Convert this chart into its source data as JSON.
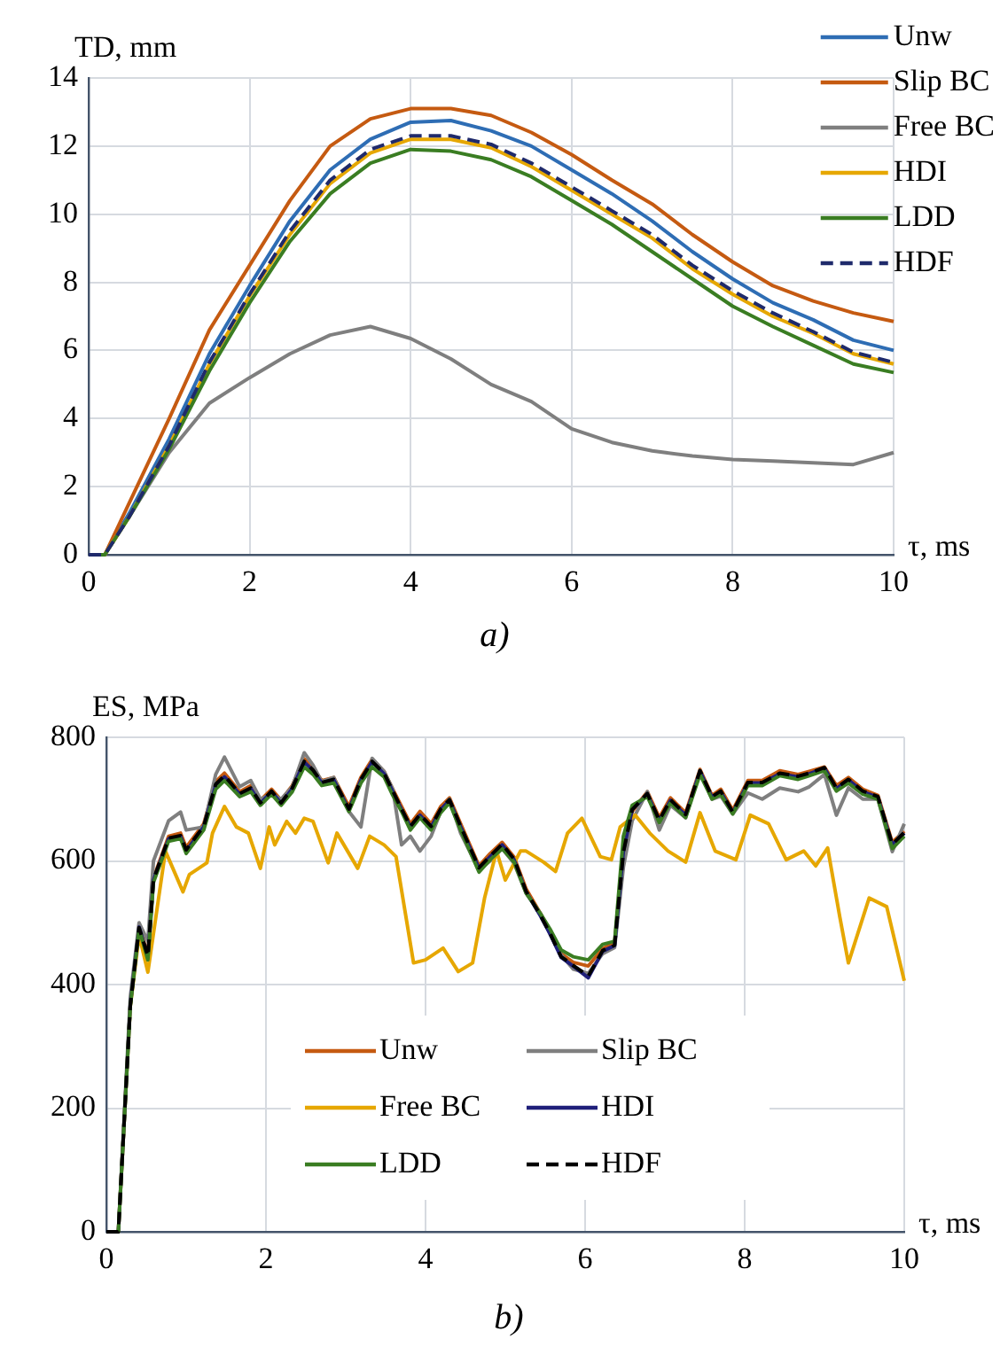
{
  "chart_data": [
    {
      "type": "line",
      "ylabel": "TD, mm",
      "xlabel": "τ, ms",
      "annotations": [
        "a)"
      ],
      "x": [
        0,
        0.2,
        0.5,
        1,
        1.5,
        2,
        2.5,
        3,
        3.5,
        4,
        4.5,
        5,
        5.5,
        6,
        6.5,
        7,
        7.5,
        8,
        8.5,
        9,
        9.5,
        10
      ],
      "series": [
        {
          "name": "Unw",
          "color": "#2e6db4",
          "values": [
            0,
            0,
            1.2,
            3.4,
            5.9,
            7.9,
            9.8,
            11.3,
            12.2,
            12.7,
            12.75,
            12.45,
            12.0,
            11.3,
            10.6,
            9.8,
            8.9,
            8.1,
            7.4,
            6.9,
            6.3,
            6.0
          ]
        },
        {
          "name": "Slip BC",
          "color": "#c55a11",
          "values": [
            0,
            0,
            1.5,
            4.0,
            6.6,
            8.5,
            10.4,
            12.0,
            12.8,
            13.1,
            13.1,
            12.9,
            12.4,
            11.75,
            11.0,
            10.3,
            9.4,
            8.6,
            7.9,
            7.45,
            7.1,
            6.85
          ]
        },
        {
          "name": "Free BC",
          "color": "#7f7f7f",
          "values": [
            0,
            0,
            1.1,
            3.0,
            4.45,
            5.2,
            5.9,
            6.45,
            6.7,
            6.35,
            5.75,
            5.0,
            4.5,
            3.7,
            3.3,
            3.05,
            2.9,
            2.8,
            2.75,
            2.7,
            2.65,
            3.0
          ]
        },
        {
          "name": "HDI",
          "color": "#e6a700",
          "values": [
            0,
            0,
            1.1,
            3.2,
            5.6,
            7.6,
            9.4,
            10.9,
            11.8,
            12.2,
            12.2,
            11.95,
            11.4,
            10.7,
            10.0,
            9.3,
            8.4,
            7.65,
            7.0,
            6.5,
            5.9,
            5.6
          ]
        },
        {
          "name": "LDD",
          "color": "#3a7d22",
          "values": [
            0,
            0,
            1.1,
            3.1,
            5.4,
            7.4,
            9.2,
            10.6,
            11.5,
            11.9,
            11.85,
            11.6,
            11.1,
            10.4,
            9.7,
            8.9,
            8.1,
            7.3,
            6.7,
            6.15,
            5.6,
            5.35
          ]
        },
        {
          "name": "HDF",
          "color": "#1f2a6b",
          "line_style": "dashed",
          "values": [
            0,
            0,
            1.1,
            3.2,
            5.65,
            7.65,
            9.5,
            11.0,
            11.9,
            12.3,
            12.3,
            12.05,
            11.5,
            10.8,
            10.1,
            9.4,
            8.5,
            7.75,
            7.1,
            6.55,
            5.95,
            5.65
          ]
        }
      ],
      "xlim": [
        0,
        10
      ],
      "xticks": [
        0,
        2,
        4,
        6,
        8,
        10
      ],
      "ylim": [
        0,
        14
      ],
      "yticks": [
        0,
        2,
        4,
        6,
        8,
        10,
        12,
        14
      ],
      "grid": true,
      "legend": "top right",
      "marker": "none"
    },
    {
      "type": "line",
      "ylabel": "ES, MPa",
      "xlabel": "τ, ms",
      "annotations": [
        "b)"
      ],
      "x": [
        0,
        0.15,
        0.3,
        0.41,
        0.52,
        0.59,
        0.78,
        0.93,
        1.0,
        1.22,
        1.37,
        1.48,
        1.67,
        1.81,
        1.93,
        2.07,
        2.19,
        2.33,
        2.48,
        2.59,
        2.7,
        2.85,
        3.04,
        3.19,
        3.33,
        3.48,
        3.59,
        3.7,
        3.81,
        3.93,
        4.07,
        4.19,
        4.3,
        4.44,
        4.67,
        4.81,
        4.96,
        5.11,
        5.26,
        5.44,
        5.56,
        5.7,
        5.85,
        6.04,
        6.22,
        6.37,
        6.48,
        6.59,
        6.78,
        6.93,
        7.07,
        7.26,
        7.44,
        7.59,
        7.7,
        7.85,
        8.04,
        8.22,
        8.44,
        8.67,
        8.81,
        9.0,
        9.15,
        9.3,
        9.48,
        9.67,
        9.85,
        10
      ],
      "series": [
        {
          "name": "Unw",
          "color": "#c55a11",
          "values": [
            null,
            null,
            370,
            495,
            448,
            572,
            640,
            645,
            622,
            660,
            728,
            742,
            712,
            722,
            698,
            716,
            698,
            722,
            765,
            750,
            730,
            735,
            688,
            735,
            764,
            745,
            716,
            688,
            660,
            680,
            660,
            688,
            702,
            660,
            592,
            612,
            630,
            606,
            555,
            515,
            486,
            450,
            436,
            430,
            458,
            468,
            610,
            680,
            712,
            670,
            702,
            678,
            748,
            706,
            716,
            682,
            730,
            730,
            746,
            740,
            745,
            752,
            722,
            735,
            716,
            706,
            630,
            648
          ]
        },
        {
          "name": "Slip BC",
          "color": "#7f7f7f",
          "values": [
            0,
            0,
            380,
            500,
            470,
            600,
            665,
            679,
            650,
            655,
            740,
            768,
            720,
            730,
            700,
            708,
            700,
            720,
            775,
            755,
            728,
            735,
            680,
            655,
            766,
            745,
            716,
            626,
            640,
            616,
            640,
            680,
            700,
            645,
            585,
            600,
            620,
            596,
            548,
            515,
            482,
            448,
            425,
            418,
            450,
            460,
            590,
            665,
            712,
            650,
            690,
            670,
            746,
            700,
            705,
            676,
            710,
            700,
            718,
            712,
            720,
            740,
            674,
            718,
            700,
            700,
            615,
            660
          ]
        },
        {
          "name": "Free BC",
          "color": "#e6a700",
          "x": [
            0,
            0.15,
            0.3,
            0.41,
            0.52,
            0.74,
            0.96,
            1.04,
            1.26,
            1.33,
            1.48,
            1.63,
            1.78,
            1.93,
            2.04,
            2.11,
            2.26,
            2.37,
            2.48,
            2.59,
            2.78,
            2.89,
            3.15,
            3.3,
            3.48,
            3.63,
            3.74,
            3.85,
            4.0,
            4.22,
            4.41,
            4.59,
            4.74,
            4.89,
            5.0,
            5.19,
            5.26,
            5.48,
            5.63,
            5.78,
            5.96,
            6.19,
            6.33,
            6.44,
            6.63,
            6.81,
            7.04,
            7.26,
            7.44,
            7.63,
            7.89,
            8.07,
            8.3,
            8.52,
            8.74,
            8.89,
            9.04,
            9.19,
            9.3,
            9.56,
            9.78,
            10
          ],
          "values": [
            0,
            0,
            365,
            480,
            420,
            616,
            550,
            578,
            597,
            645,
            688,
            655,
            645,
            588,
            655,
            626,
            664,
            645,
            669,
            664,
            597,
            645,
            588,
            640,
            626,
            607,
            521,
            435,
            440,
            459,
            421,
            435,
            540,
            616,
            569,
            616,
            616,
            598,
            583,
            645,
            669,
            607,
            602,
            655,
            674,
            645,
            616,
            598,
            678,
            616,
            602,
            674,
            660,
            602,
            616,
            592,
            621,
            511,
            435,
            540,
            526,
            406
          ]
        },
        {
          "name": "HDI",
          "color": "#1f1f7a",
          "values": [
            0,
            0,
            368,
            493,
            444,
            569,
            636,
            640,
            616,
            655,
            722,
            736,
            708,
            717,
            693,
            712,
            693,
            717,
            760,
            746,
            726,
            731,
            683,
            731,
            760,
            741,
            712,
            683,
            655,
            674,
            655,
            683,
            698,
            655,
            588,
            607,
            626,
            602,
            550,
            511,
            482,
            444,
            430,
            411,
            454,
            463,
            616,
            683,
            708,
            665,
            698,
            674,
            745,
            703,
            712,
            678,
            726,
            726,
            741,
            736,
            741,
            750,
            717,
            731,
            712,
            703,
            626,
            645
          ]
        },
        {
          "name": "LDD",
          "color": "#3a7d22",
          "values": [
            0,
            0,
            365,
            490,
            440,
            565,
            632,
            636,
            612,
            650,
            716,
            730,
            704,
            712,
            690,
            708,
            690,
            712,
            752,
            740,
            722,
            726,
            680,
            726,
            752,
            736,
            706,
            680,
            650,
            670,
            650,
            678,
            694,
            650,
            582,
            602,
            620,
            598,
            548,
            515,
            490,
            456,
            445,
            440,
            465,
            470,
            640,
            690,
            704,
            662,
            694,
            670,
            740,
            700,
            708,
            676,
            722,
            722,
            738,
            732,
            738,
            746,
            713,
            726,
            708,
            700,
            620,
            640
          ]
        },
        {
          "name": "HDF",
          "color": "#000000",
          "line_style": "dashed",
          "values": [
            0,
            0,
            366,
            492,
            446,
            570,
            637,
            641,
            618,
            656,
            724,
            738,
            709,
            718,
            694,
            713,
            694,
            718,
            761,
            747,
            727,
            732,
            684,
            732,
            761,
            742,
            713,
            684,
            656,
            675,
            656,
            684,
            699,
            656,
            589,
            608,
            627,
            603,
            551,
            512,
            483,
            445,
            431,
            414,
            455,
            464,
            614,
            683,
            709,
            666,
            699,
            675,
            746,
            704,
            713,
            679,
            727,
            727,
            742,
            737,
            742,
            751,
            718,
            732,
            713,
            704,
            627,
            646
          ]
        }
      ],
      "xlim": [
        0,
        10
      ],
      "xticks": [
        0,
        2,
        4,
        6,
        8,
        10
      ],
      "ylim": [
        0,
        800
      ],
      "yticks": [
        0,
        200,
        400,
        600,
        800
      ],
      "grid": true,
      "legend": "bottom",
      "marker": "none"
    }
  ]
}
